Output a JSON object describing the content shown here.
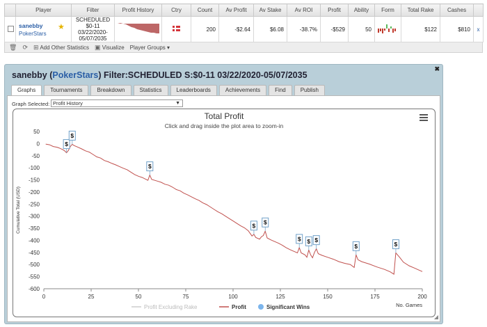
{
  "table": {
    "headers": [
      "Player",
      "Filter",
      "Profit History",
      "Ctry",
      "Count",
      "Av Profit",
      "Av Stake",
      "Av ROI",
      "Profit",
      "Ability",
      "Form",
      "Total Rake",
      "Cashes"
    ],
    "row": {
      "player_name": "sanebby",
      "player_site": "PokerStars",
      "filter_lines": [
        "SCHEDULED",
        "$0-11",
        "03/22/2020-",
        "05/07/2035"
      ],
      "count": "200",
      "av_profit": "-$2.64",
      "av_stake": "$6.08",
      "av_roi": "-38.7%",
      "profit": "-$529",
      "ability": "50",
      "total_rake": "$122",
      "cashes": "$810",
      "remove_label": "x"
    }
  },
  "toolbar": {
    "add_stats": "Add Other Statistics",
    "visualize": "Visualize",
    "player_groups": "Player Groups"
  },
  "panel": {
    "title_player": "sanebby",
    "title_site": "PokerStars",
    "title_filter": "Filter:SCHEDULED S:$0-11 03/22/2020-05/07/2035",
    "tabs": [
      "Graphs",
      "Tournaments",
      "Breakdown",
      "Statistics",
      "Leaderboards",
      "Achievements",
      "Find",
      "Publish"
    ],
    "graph_selected_label": "Graph Selected:",
    "graph_selected_value": "Profit History"
  },
  "chart_data": {
    "type": "line",
    "title": "Total Profit",
    "subtitle": "Click and drag inside the plot area to zoom-in",
    "xlabel": "No. Games",
    "ylabel": "Cumulative Total (USD)",
    "xlim": [
      0,
      200
    ],
    "ylim": [
      -600,
      50
    ],
    "xticks": [
      0,
      25,
      50,
      75,
      100,
      125,
      150,
      175,
      200
    ],
    "yticks": [
      50,
      0,
      -50,
      -100,
      -150,
      -200,
      -250,
      -300,
      -350,
      -400,
      -450,
      -500,
      -550,
      -600
    ],
    "legend": [
      "Profit Excluding Rake",
      "Profit",
      "Significant Wins"
    ],
    "series": [
      {
        "name": "Profit",
        "color": "#c0504d",
        "points": [
          [
            1,
            -2
          ],
          [
            3,
            -5
          ],
          [
            5,
            -12
          ],
          [
            7,
            -15
          ],
          [
            8,
            -18
          ],
          [
            10,
            -25
          ],
          [
            11,
            -30
          ],
          [
            12,
            -38
          ],
          [
            13,
            -28
          ],
          [
            14,
            -12
          ],
          [
            15,
            -3
          ],
          [
            16,
            -8
          ],
          [
            18,
            -15
          ],
          [
            20,
            -22
          ],
          [
            22,
            -30
          ],
          [
            24,
            -35
          ],
          [
            26,
            -45
          ],
          [
            28,
            -55
          ],
          [
            30,
            -60
          ],
          [
            32,
            -70
          ],
          [
            34,
            -75
          ],
          [
            36,
            -82
          ],
          [
            38,
            -88
          ],
          [
            40,
            -95
          ],
          [
            42,
            -102
          ],
          [
            44,
            -108
          ],
          [
            46,
            -118
          ],
          [
            48,
            -128
          ],
          [
            50,
            -135
          ],
          [
            52,
            -140
          ],
          [
            54,
            -148
          ],
          [
            55,
            -152
          ],
          [
            56,
            -130
          ],
          [
            57,
            -148
          ],
          [
            60,
            -155
          ],
          [
            62,
            -160
          ],
          [
            64,
            -168
          ],
          [
            66,
            -172
          ],
          [
            68,
            -180
          ],
          [
            70,
            -190
          ],
          [
            72,
            -195
          ],
          [
            74,
            -205
          ],
          [
            76,
            -212
          ],
          [
            78,
            -220
          ],
          [
            80,
            -228
          ],
          [
            82,
            -235
          ],
          [
            84,
            -245
          ],
          [
            86,
            -252
          ],
          [
            88,
            -262
          ],
          [
            90,
            -272
          ],
          [
            92,
            -282
          ],
          [
            94,
            -290
          ],
          [
            96,
            -300
          ],
          [
            98,
            -310
          ],
          [
            100,
            -320
          ],
          [
            102,
            -330
          ],
          [
            104,
            -340
          ],
          [
            106,
            -348
          ],
          [
            108,
            -360
          ],
          [
            110,
            -382
          ],
          [
            111,
            -375
          ],
          [
            112,
            -388
          ],
          [
            114,
            -395
          ],
          [
            115,
            -385
          ],
          [
            116,
            -380
          ],
          [
            117,
            -362
          ],
          [
            118,
            -390
          ],
          [
            120,
            -398
          ],
          [
            122,
            -405
          ],
          [
            124,
            -412
          ],
          [
            126,
            -420
          ],
          [
            128,
            -430
          ],
          [
            130,
            -438
          ],
          [
            132,
            -445
          ],
          [
            134,
            -452
          ],
          [
            135,
            -430
          ],
          [
            136,
            -452
          ],
          [
            138,
            -460
          ],
          [
            139,
            -470
          ],
          [
            140,
            -440
          ],
          [
            141,
            -460
          ],
          [
            142,
            -472
          ],
          [
            143,
            -450
          ],
          [
            144,
            -435
          ],
          [
            145,
            -455
          ],
          [
            147,
            -462
          ],
          [
            150,
            -470
          ],
          [
            153,
            -478
          ],
          [
            156,
            -488
          ],
          [
            159,
            -495
          ],
          [
            162,
            -500
          ],
          [
            164,
            -512
          ],
          [
            165,
            -460
          ],
          [
            166,
            -480
          ],
          [
            168,
            -488
          ],
          [
            172,
            -498
          ],
          [
            176,
            -510
          ],
          [
            180,
            -520
          ],
          [
            183,
            -530
          ],
          [
            185,
            -540
          ],
          [
            186,
            -452
          ],
          [
            188,
            -470
          ],
          [
            190,
            -490
          ],
          [
            193,
            -505
          ],
          [
            196,
            -515
          ],
          [
            198,
            -522
          ],
          [
            200,
            -529
          ]
        ]
      }
    ],
    "significant_wins": [
      [
        12,
        -38
      ],
      [
        15,
        -3
      ],
      [
        56,
        -130
      ],
      [
        111,
        -375
      ],
      [
        117,
        -362
      ],
      [
        135,
        -430
      ],
      [
        140,
        -440
      ],
      [
        144,
        -435
      ],
      [
        165,
        -460
      ],
      [
        186,
        -452
      ]
    ],
    "marker_label": "$"
  }
}
